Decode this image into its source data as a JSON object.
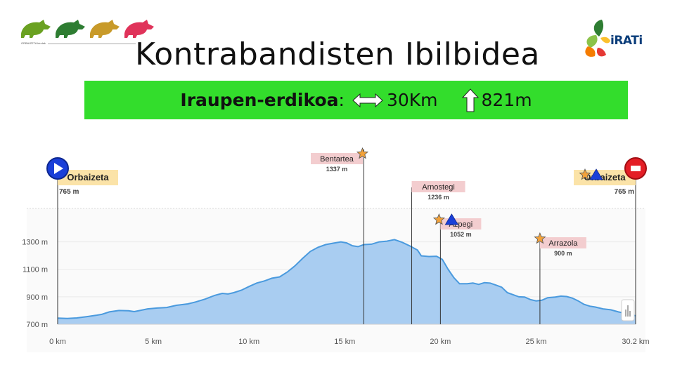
{
  "header": {
    "title": "Kontrabandisten Ibilbidea",
    "logo_left_caption": "ORBAIZETA kirolak",
    "logo_right_text": "iRATi"
  },
  "stats": {
    "level": "Iraupen-erdikoa",
    "level_suffix": ":",
    "distance": "30Km",
    "elevation": "821m",
    "distance_icon": "double-arrow-icon",
    "elevation_icon": "up-arrow-icon"
  },
  "colors": {
    "banner": "#33dd2c",
    "area_fill": "#a9cdf1",
    "area_line": "#4a9ade",
    "label_pink": "#f3cdcf",
    "label_yellow": "#fbe3a8",
    "boar_colors": [
      "#6aa121",
      "#2e7d32",
      "#c89a2a",
      "#e0335a"
    ]
  },
  "chart_data": {
    "type": "area",
    "xlabel": "",
    "ylabel": "",
    "xlim": [
      0,
      30.2
    ],
    "ylim": [
      700,
      1400
    ],
    "x_ticks": [
      {
        "v": 0,
        "label": "0 km"
      },
      {
        "v": 5,
        "label": "5 km"
      },
      {
        "v": 10,
        "label": "10 km"
      },
      {
        "v": 15,
        "label": "15 km"
      },
      {
        "v": 20,
        "label": "20 km"
      },
      {
        "v": 25,
        "label": "25 km"
      },
      {
        "v": 30.2,
        "label": "30.2 km"
      }
    ],
    "y_ticks": [
      {
        "v": 700,
        "label": "700 m"
      },
      {
        "v": 900,
        "label": "900 m"
      },
      {
        "v": 1100,
        "label": "1100 m"
      },
      {
        "v": 1300,
        "label": "1300 m"
      }
    ],
    "profile": [
      [
        0,
        745
      ],
      [
        0.5,
        742
      ],
      [
        1,
        746
      ],
      [
        1.5,
        755
      ],
      [
        2,
        765
      ],
      [
        2.3,
        772
      ],
      [
        2.7,
        790
      ],
      [
        3.2,
        800
      ],
      [
        3.7,
        798
      ],
      [
        4,
        792
      ],
      [
        4.3,
        800
      ],
      [
        4.7,
        812
      ],
      [
        5.2,
        818
      ],
      [
        5.7,
        822
      ],
      [
        6.2,
        838
      ],
      [
        6.8,
        848
      ],
      [
        7.2,
        862
      ],
      [
        7.7,
        883
      ],
      [
        8.2,
        910
      ],
      [
        8.6,
        925
      ],
      [
        8.9,
        920
      ],
      [
        9.2,
        930
      ],
      [
        9.6,
        948
      ],
      [
        10,
        975
      ],
      [
        10.4,
        1000
      ],
      [
        10.8,
        1015
      ],
      [
        11.2,
        1035
      ],
      [
        11.6,
        1045
      ],
      [
        12,
        1080
      ],
      [
        12.4,
        1125
      ],
      [
        12.8,
        1180
      ],
      [
        13.2,
        1230
      ],
      [
        13.6,
        1260
      ],
      [
        14,
        1280
      ],
      [
        14.4,
        1290
      ],
      [
        14.8,
        1300
      ],
      [
        15.1,
        1292
      ],
      [
        15.4,
        1272
      ],
      [
        15.7,
        1265
      ],
      [
        16,
        1280
      ],
      [
        16.4,
        1283
      ],
      [
        16.8,
        1300
      ],
      [
        17.2,
        1305
      ],
      [
        17.6,
        1316
      ],
      [
        18,
        1297
      ],
      [
        18.4,
        1270
      ],
      [
        18.8,
        1240
      ],
      [
        19,
        1198
      ],
      [
        19.4,
        1193
      ],
      [
        19.8,
        1195
      ],
      [
        20.1,
        1172
      ],
      [
        20.4,
        1100
      ],
      [
        20.7,
        1040
      ],
      [
        21,
        995
      ],
      [
        21.4,
        995
      ],
      [
        21.7,
        1000
      ],
      [
        22,
        990
      ],
      [
        22.3,
        1003
      ],
      [
        22.6,
        1000
      ],
      [
        22.9,
        985
      ],
      [
        23.2,
        970
      ],
      [
        23.5,
        930
      ],
      [
        23.8,
        915
      ],
      [
        24.1,
        900
      ],
      [
        24.4,
        898
      ],
      [
        24.7,
        880
      ],
      [
        25,
        870
      ],
      [
        25.3,
        875
      ],
      [
        25.6,
        893
      ],
      [
        26,
        898
      ],
      [
        26.3,
        905
      ],
      [
        26.6,
        902
      ],
      [
        26.9,
        890
      ],
      [
        27.2,
        870
      ],
      [
        27.5,
        845
      ],
      [
        27.8,
        832
      ],
      [
        28.1,
        825
      ],
      [
        28.5,
        812
      ],
      [
        28.9,
        805
      ],
      [
        29.3,
        790
      ],
      [
        29.7,
        778
      ],
      [
        30,
        770
      ],
      [
        30.2,
        762
      ]
    ],
    "waypoints": [
      {
        "name": "Orbaizeta",
        "elevation": "765 m",
        "km": 0,
        "style": "start",
        "icons": [
          "play-icon"
        ]
      },
      {
        "name": "Bentartea",
        "elevation": "1337 m",
        "km": 16.0,
        "style": "pink",
        "icons": [
          "star-icon"
        ]
      },
      {
        "name": "Arnostegi",
        "elevation": "1236 m",
        "km": 18.5,
        "style": "pink",
        "icons": []
      },
      {
        "name": "Azpegi",
        "elevation": "1052 m",
        "km": 20.0,
        "style": "pink",
        "icons": [
          "star-icon",
          "triangle-icon"
        ]
      },
      {
        "name": "Arrazola",
        "elevation": "900 m",
        "km": 25.2,
        "style": "pink",
        "icons": [
          "star-icon"
        ]
      },
      {
        "name": "Orbaizeta",
        "elevation": "765 m",
        "km": 30.2,
        "style": "end",
        "icons": [
          "star-icon",
          "triangle-icon",
          "stop-icon"
        ]
      }
    ]
  }
}
